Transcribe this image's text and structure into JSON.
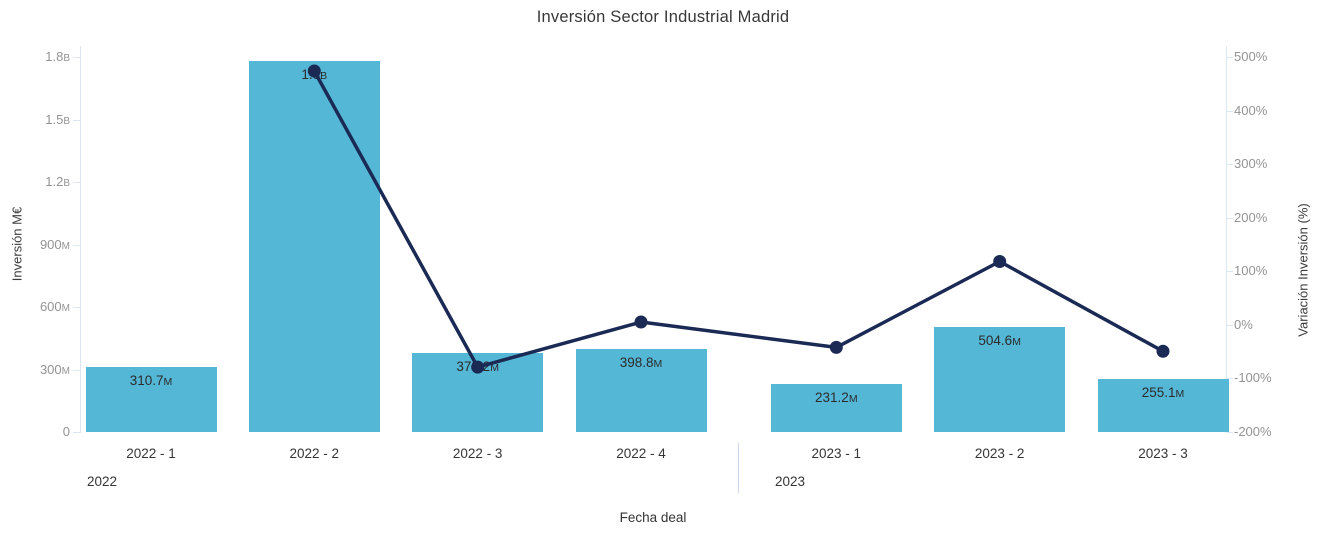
{
  "chart_data": {
    "type": "bar+line combo",
    "title": "Inversión Sector Industrial Madrid",
    "xlabel": "Fecha deal",
    "categories": [
      "2022 - 1",
      "2022 - 2",
      "2022 - 3",
      "2022 - 4",
      "2023 - 1",
      "2023 - 2",
      "2023 - 3"
    ],
    "groups": [
      {
        "label": "2022",
        "count": 4
      },
      {
        "label": "2023",
        "count": 3
      }
    ],
    "axes": {
      "left": {
        "label": "Inversión M€",
        "min_meur": 0,
        "max_meur": 1800,
        "ticks": [
          {
            "v": "1.8",
            "s": "B"
          },
          {
            "v": "1.5",
            "s": "B"
          },
          {
            "v": "1.2",
            "s": "B"
          },
          {
            "v": "900",
            "s": "M"
          },
          {
            "v": "600",
            "s": "M"
          },
          {
            "v": "300",
            "s": "M"
          },
          {
            "v": "0",
            "s": ""
          }
        ]
      },
      "right": {
        "label": "Variación Inversión (%)",
        "min_pct": -200,
        "max_pct": 500,
        "ticks": [
          "500%",
          "400%",
          "300%",
          "200%",
          "100%",
          "0%",
          "-100%",
          "-200%"
        ]
      }
    },
    "series": [
      {
        "name": "Inversión M€",
        "type": "bar",
        "color": "#54b7d6",
        "values_meur": [
          310.7,
          1783,
          378.2,
          398.8,
          231.2,
          504.6,
          255.1
        ],
        "labels": [
          {
            "v": "310.7",
            "s": "M"
          },
          {
            "v": "1.8",
            "s": "B"
          },
          {
            "v": "378.2",
            "s": "M"
          },
          {
            "v": "398.8",
            "s": "M"
          },
          {
            "v": "231.2",
            "s": "M"
          },
          {
            "v": "504.6",
            "s": "M"
          },
          {
            "v": "255.1",
            "s": "M"
          }
        ]
      },
      {
        "name": "Variación Inversión (%)",
        "type": "line",
        "color": "#1b2a55",
        "values_pct": [
          null,
          473.8,
          -78.8,
          5.4,
          -42.0,
          118.3,
          -49.4
        ]
      }
    ],
    "layout_hints": {
      "grid": "off",
      "legend": "none",
      "bar_labels_inside_top": true,
      "line_markers": "filled-circle"
    }
  }
}
